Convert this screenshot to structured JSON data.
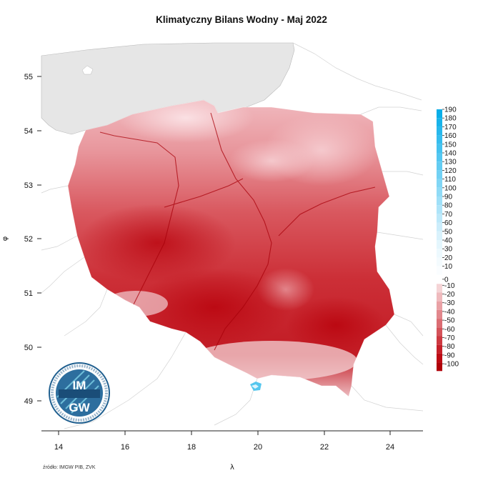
{
  "title": "Klimatyczny Bilans Wodny - Maj 2022",
  "source": "źródło: IMGW PIB, ZVK",
  "axes": {
    "x_name": "λ",
    "y_name": "φ",
    "x_ticks": [
      "14",
      "16",
      "18",
      "20",
      "22",
      "24"
    ],
    "y_ticks": [
      "55",
      "54",
      "53",
      "52",
      "51",
      "50",
      "49"
    ]
  },
  "legend": {
    "positive": [
      {
        "label": "190",
        "color": "#0aaee8"
      },
      {
        "label": "180",
        "color": "#18b3ea"
      },
      {
        "label": "170",
        "color": "#27b8ec"
      },
      {
        "label": "160",
        "color": "#36bdee"
      },
      {
        "label": "150",
        "color": "#45c2ef"
      },
      {
        "label": "140",
        "color": "#54c7f1"
      },
      {
        "label": "130",
        "color": "#63ccf2"
      },
      {
        "label": "120",
        "color": "#72d1f4"
      },
      {
        "label": "110",
        "color": "#81d6f5"
      },
      {
        "label": "100",
        "color": "#90dbf6"
      },
      {
        "label": "90",
        "color": "#9fe0f8"
      },
      {
        "label": "80",
        "color": "#aee4f9"
      },
      {
        "label": "70",
        "color": "#bde9fa"
      },
      {
        "label": "60",
        "color": "#ccedfb"
      },
      {
        "label": "50",
        "color": "#d9f2fc"
      },
      {
        "label": "40",
        "color": "#e4f6fd"
      },
      {
        "label": "30",
        "color": "#edf9fe"
      },
      {
        "label": "20",
        "color": "#f4fbfe"
      },
      {
        "label": "10",
        "color": "#fafdff"
      }
    ],
    "zero_label": "0",
    "negative": [
      {
        "label": "-10",
        "color": "#f5d4d6"
      },
      {
        "label": "-20",
        "color": "#efbabd"
      },
      {
        "label": "-30",
        "color": "#e9a1a5"
      },
      {
        "label": "-40",
        "color": "#e2878c"
      },
      {
        "label": "-50",
        "color": "#db6d73"
      },
      {
        "label": "-60",
        "color": "#d4535a"
      },
      {
        "label": "-70",
        "color": "#cd3941"
      },
      {
        "label": "-80",
        "color": "#c52029"
      },
      {
        "label": "-90",
        "color": "#bd0a13"
      },
      {
        "label": "-100",
        "color": "#b00008"
      }
    ]
  },
  "logo": {
    "text_top": "IM",
    "text_bottom": "GW",
    "ring_text": "INSTYTUT METEOROLOGII I GOSPODARKI WODNEJ"
  },
  "colors": {
    "sea": "#e6e6e6",
    "dry": "#c81e26",
    "moist": "#f0b9bf",
    "wet": "#55c7ee"
  }
}
